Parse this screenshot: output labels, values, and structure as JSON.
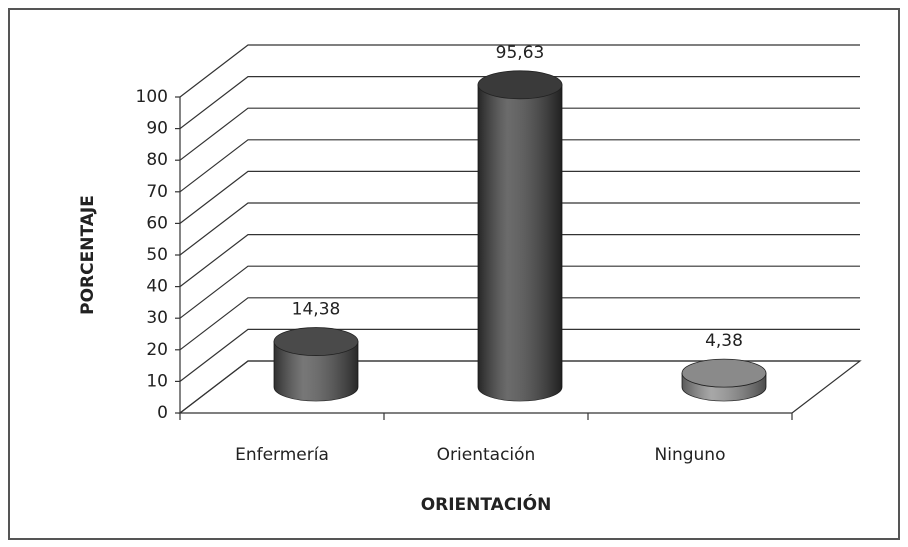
{
  "chart_data": {
    "type": "bar3d",
    "categories": [
      "Enfermería",
      "Orientación",
      "Ninguno"
    ],
    "values": [
      14.38,
      95.63,
      4.38
    ],
    "value_labels": [
      "14,38",
      "95,63",
      "4,38"
    ],
    "colors": [
      "#4a4a4a",
      "#3a3a3a",
      "#8a8a8a"
    ],
    "y_label": "PORCENTAJE",
    "x_label": "ORIENTACIÓN",
    "ylim": [
      0,
      100
    ],
    "yticks": [
      0,
      10,
      20,
      30,
      40,
      50,
      60,
      70,
      80,
      90,
      100
    ],
    "grid": true
  }
}
